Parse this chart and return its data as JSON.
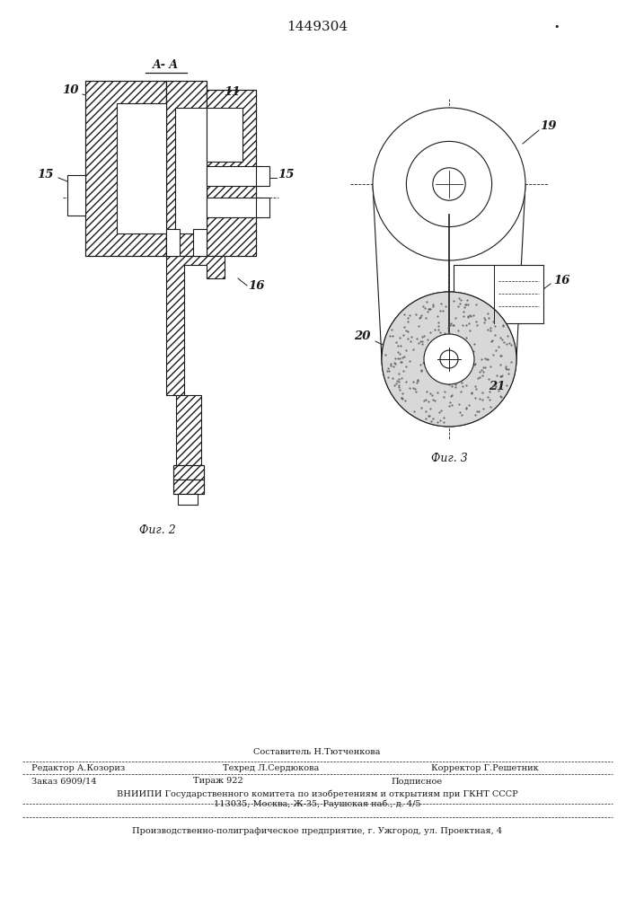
{
  "title": "1449304",
  "bg_color": "#ffffff",
  "lc": "#1a1a1a",
  "lw": 0.8,
  "fig2_label": "Фиг. 2",
  "fig3_label": "Фиг. 3",
  "section_label": "A- A",
  "footer": {
    "sestavitel": "Составитель Н.Тютченкова",
    "redaktor": "Редактор А.Козориз",
    "tehred": "Техред Л.Сердюкова",
    "korrektor": "Корректор Г.Решетник",
    "zakaz": "Заказ 6909/14",
    "tirazh": "Тираж 922",
    "podpisnoe": "Подписное",
    "vniipи": "ВНИИПИ Государственного комитета по изобретениям и открытиям при ГКНТ СССР",
    "address": "113035, Москва, Ж-35, Раушская наб., д. 4/5",
    "predpriyatie": "Производственно-полиграфическое предприятие, г. Ужгород, ул. Проектная, 4"
  }
}
